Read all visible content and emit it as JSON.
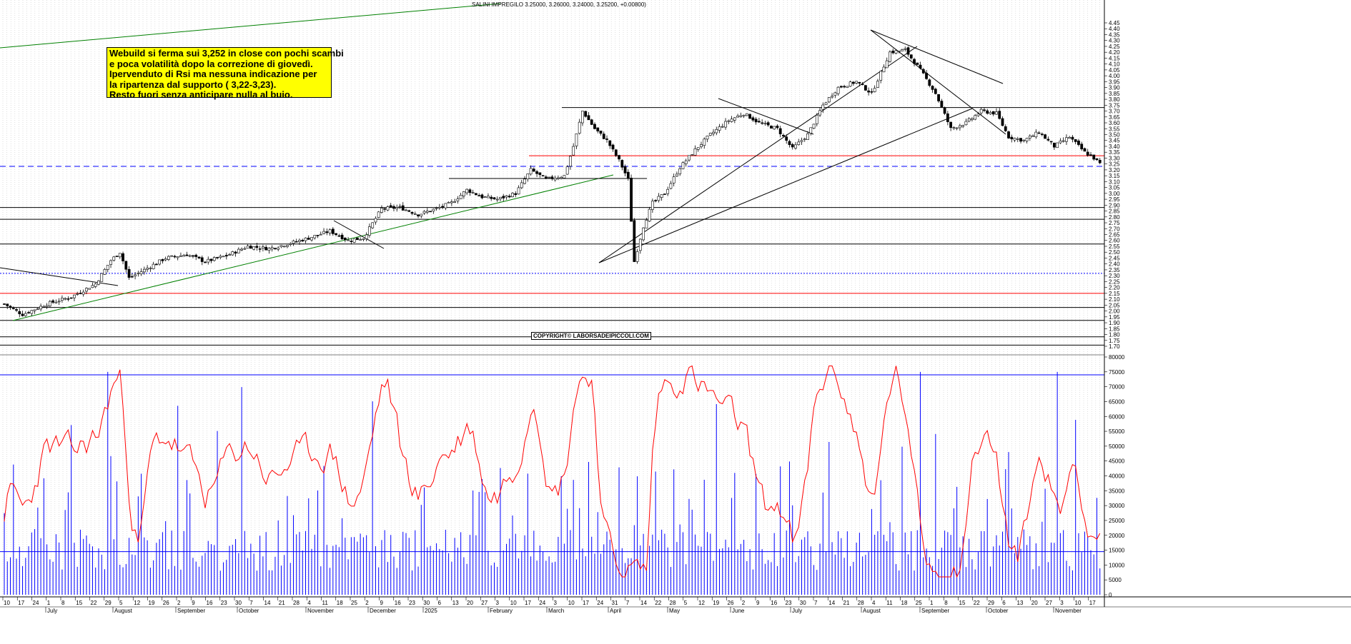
{
  "header": {
    "ticker_line": "SALINI IMPREGILO 3.25000, 3.26000, 3.24000, 3.25200, +0.00800)"
  },
  "annotation": {
    "lines": [
      "Webuild si ferma sui 3,252 in close con pochi scambi",
      "e poca volatilità dopo la correzione di giovedì.",
      "Ipervenduto di Rsi ma nessuna indicazione per",
      "la ripartenza dal supporto ( 3,22-3,23).",
      "Resto fuori senza anticipare nulla al buio."
    ]
  },
  "watermark": "COPYRIGHT© LABORSADEIPICCOLI.COM",
  "colors": {
    "candle": "#000000",
    "volume": "#0000ff",
    "rsi": "#ff0000",
    "support_dashed": "#0000ff",
    "resistance_red": "#ff0000",
    "uptrend_green": "#008000",
    "note_bg": "#ffff00",
    "grid": "#b0b0b0"
  },
  "chart_data": [
    {
      "type": "candlestick",
      "panel": "price",
      "y_ticks": [
        "1.70",
        "1.75",
        "1.80",
        "1.85",
        "1.90",
        "1.95",
        "2.00",
        "2.05",
        "2.10",
        "2.15",
        "2.20",
        "2.25",
        "2.30",
        "2.35",
        "2.40",
        "2.45",
        "2.50",
        "2.55",
        "2.60",
        "2.65",
        "2.70",
        "2.75",
        "2.80",
        "2.85",
        "2.90",
        "2.95",
        "3.00",
        "3.05",
        "3.10",
        "3.15",
        "3.20",
        "3.25",
        "3.30",
        "3.35",
        "3.40",
        "3.45",
        "3.50",
        "3.55",
        "3.60",
        "3.65",
        "3.70",
        "3.75",
        "3.80",
        "3.85",
        "3.90",
        "3.95",
        "4.00",
        "4.05",
        "4.10",
        "4.15",
        "4.20",
        "4.25",
        "4.30",
        "4.35",
        "4.40",
        "4.45"
      ],
      "ylim": [
        1.68,
        4.47
      ],
      "last_close": 3.252,
      "close_path": [
        {
          "day": 0,
          "close": 2.06
        },
        {
          "day": 6,
          "close": 1.97
        },
        {
          "day": 14,
          "close": 2.06
        },
        {
          "day": 22,
          "close": 2.12
        },
        {
          "day": 30,
          "close": 2.23
        },
        {
          "day": 35,
          "close": 2.43
        },
        {
          "day": 38,
          "close": 2.5
        },
        {
          "day": 41,
          "close": 2.28
        },
        {
          "day": 46,
          "close": 2.35
        },
        {
          "day": 53,
          "close": 2.45
        },
        {
          "day": 60,
          "close": 2.48
        },
        {
          "day": 66,
          "close": 2.42
        },
        {
          "day": 73,
          "close": 2.47
        },
        {
          "day": 80,
          "close": 2.55
        },
        {
          "day": 87,
          "close": 2.53
        },
        {
          "day": 93,
          "close": 2.57
        },
        {
          "day": 100,
          "close": 2.62
        },
        {
          "day": 107,
          "close": 2.68
        },
        {
          "day": 113,
          "close": 2.6
        },
        {
          "day": 118,
          "close": 2.62
        },
        {
          "day": 124,
          "close": 2.87
        },
        {
          "day": 130,
          "close": 2.88
        },
        {
          "day": 136,
          "close": 2.82
        },
        {
          "day": 142,
          "close": 2.87
        },
        {
          "day": 147,
          "close": 2.92
        },
        {
          "day": 152,
          "close": 3.03
        },
        {
          "day": 157,
          "close": 2.97
        },
        {
          "day": 162,
          "close": 2.95
        },
        {
          "day": 168,
          "close": 3.0
        },
        {
          "day": 173,
          "close": 3.2
        },
        {
          "day": 178,
          "close": 3.12
        },
        {
          "day": 184,
          "close": 3.15
        },
        {
          "day": 187,
          "close": 3.4
        },
        {
          "day": 190,
          "close": 3.7
        },
        {
          "day": 194,
          "close": 3.55
        },
        {
          "day": 198,
          "close": 3.45
        },
        {
          "day": 202,
          "close": 3.28
        },
        {
          "day": 205,
          "close": 3.12
        },
        {
          "day": 207,
          "close": 2.42
        },
        {
          "day": 210,
          "close": 2.72
        },
        {
          "day": 213,
          "close": 2.92
        },
        {
          "day": 217,
          "close": 3.0
        },
        {
          "day": 222,
          "close": 3.22
        },
        {
          "day": 227,
          "close": 3.37
        },
        {
          "day": 232,
          "close": 3.5
        },
        {
          "day": 238,
          "close": 3.62
        },
        {
          "day": 243,
          "close": 3.68
        },
        {
          "day": 248,
          "close": 3.6
        },
        {
          "day": 254,
          "close": 3.55
        },
        {
          "day": 259,
          "close": 3.38
        },
        {
          "day": 264,
          "close": 3.5
        },
        {
          "day": 269,
          "close": 3.75
        },
        {
          "day": 274,
          "close": 3.9
        },
        {
          "day": 280,
          "close": 3.95
        },
        {
          "day": 285,
          "close": 3.85
        },
        {
          "day": 291,
          "close": 4.2
        },
        {
          "day": 296,
          "close": 4.22
        },
        {
          "day": 301,
          "close": 4.05
        },
        {
          "day": 306,
          "close": 3.85
        },
        {
          "day": 311,
          "close": 3.55
        },
        {
          "day": 316,
          "close": 3.6
        },
        {
          "day": 321,
          "close": 3.7
        },
        {
          "day": 326,
          "close": 3.68
        },
        {
          "day": 330,
          "close": 3.48
        },
        {
          "day": 335,
          "close": 3.45
        },
        {
          "day": 340,
          "close": 3.52
        },
        {
          "day": 345,
          "close": 3.4
        },
        {
          "day": 350,
          "close": 3.48
        },
        {
          "day": 355,
          "close": 3.35
        },
        {
          "day": 358,
          "close": 3.3
        },
        {
          "day": 360,
          "close": 3.252
        }
      ],
      "horizontal_levels": [
        {
          "value": 3.23,
          "style": "dashed",
          "color": "blue"
        },
        {
          "value": 3.32,
          "style": "solid",
          "color": "red"
        },
        {
          "value": 2.15,
          "style": "solid",
          "color": "red"
        },
        {
          "value": 2.32,
          "style": "dotted",
          "color": "blue"
        },
        {
          "value": 3.73,
          "style": "solid",
          "color": "black"
        },
        {
          "value": 2.88,
          "style": "solid",
          "color": "black"
        },
        {
          "value": 2.78,
          "style": "solid",
          "color": "black"
        },
        {
          "value": 2.57,
          "style": "solid",
          "color": "black"
        },
        {
          "value": 2.03,
          "style": "solid",
          "color": "black"
        },
        {
          "value": 1.92,
          "style": "solid",
          "color": "black"
        },
        {
          "value": 1.78,
          "style": "solid",
          "color": "black"
        },
        {
          "value": 1.71,
          "style": "solid",
          "color": "black"
        }
      ]
    },
    {
      "type": "bar",
      "panel": "volume",
      "series": [
        {
          "name": "",
          "values_note": "daily volume bars"
        }
      ],
      "y_ticks": [
        "0",
        "5000",
        "10000",
        "15000",
        "20000",
        "25000",
        "30000",
        "35000",
        "40000",
        "45000",
        "50000",
        "55000",
        "60000",
        "65000",
        "70000",
        "75000",
        "80000"
      ],
      "ylim": [
        0,
        82000
      ],
      "levels": [
        74000,
        14500
      ]
    },
    {
      "type": "line",
      "panel": "rsi_overlay",
      "color": "red"
    }
  ],
  "x_axis": {
    "day_labels": [
      "10",
      "17",
      "24",
      "1",
      "8",
      "15",
      "22",
      "29",
      "5",
      "12",
      "19",
      "26",
      "2",
      "9",
      "16",
      "23",
      "30",
      "7",
      "14",
      "21",
      "28",
      "4",
      "11",
      "18",
      "25",
      "2",
      "9",
      "16",
      "23",
      "30",
      "6",
      "13",
      "20",
      "27",
      "3",
      "10",
      "17",
      "24",
      "3",
      "10",
      "17",
      "24",
      "31",
      "7",
      "14",
      "22",
      "28",
      "5",
      "12",
      "19",
      "26",
      "2",
      "9",
      "16",
      "23",
      "30",
      "7",
      "14",
      "21",
      "28",
      "4",
      "11",
      "18",
      "25",
      "1",
      "8",
      "15",
      "22",
      "29",
      "6",
      "13",
      "20",
      "27",
      "3",
      "10",
      "17"
    ],
    "months": [
      "July",
      "August",
      "September",
      "October",
      "November",
      "December",
      "2025",
      "February",
      "March",
      "April",
      "May",
      "June",
      "July",
      "August",
      "September",
      "October",
      "November"
    ]
  }
}
